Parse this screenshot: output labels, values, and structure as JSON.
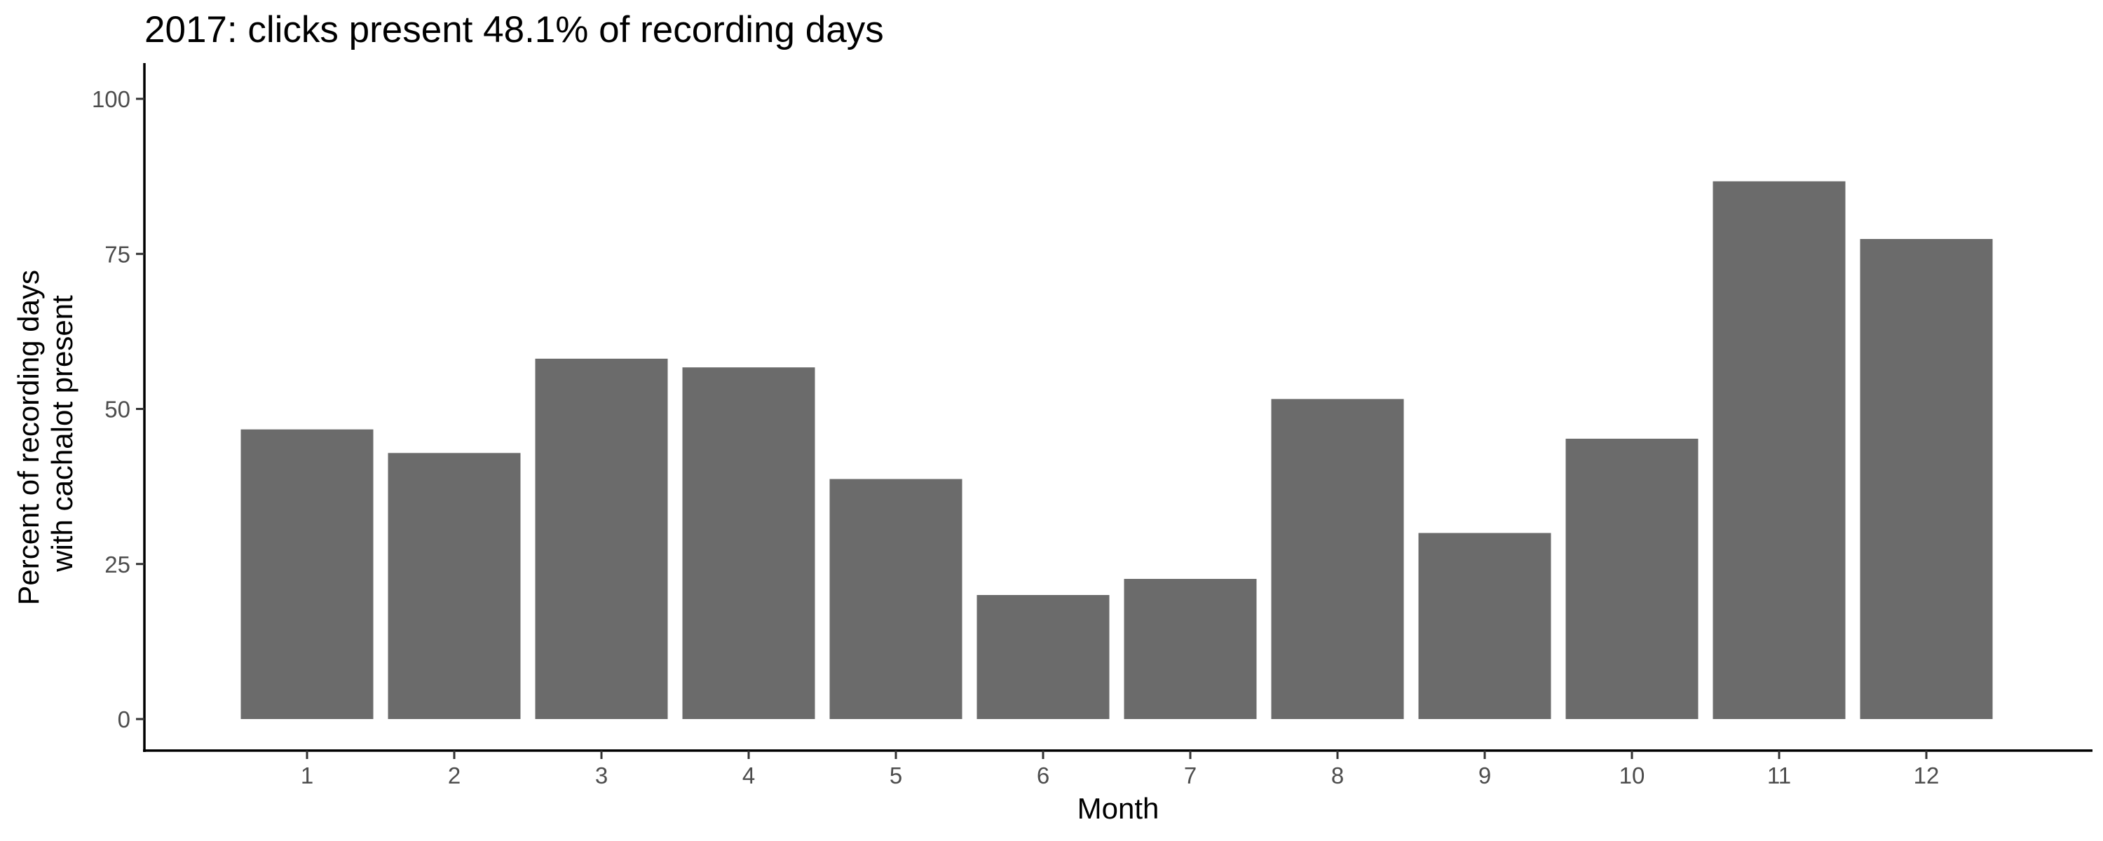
{
  "chart_data": {
    "type": "bar",
    "title": "2017: clicks present 48.1% of recording days",
    "xlabel": "Month",
    "ylabel_lines": [
      "Percent of recording days",
      "with cachalot present"
    ],
    "categories": [
      "1",
      "2",
      "3",
      "4",
      "5",
      "6",
      "7",
      "8",
      "9",
      "10",
      "11",
      "12"
    ],
    "values": [
      46.7,
      42.9,
      58.1,
      56.7,
      38.7,
      20.0,
      22.6,
      51.6,
      30.0,
      45.2,
      86.7,
      77.4
    ],
    "ylim": [
      0,
      100
    ],
    "yticks": [
      0,
      25,
      50,
      75,
      100
    ],
    "bar_color": "#6b6b6b",
    "grid": false,
    "legend": "none"
  }
}
